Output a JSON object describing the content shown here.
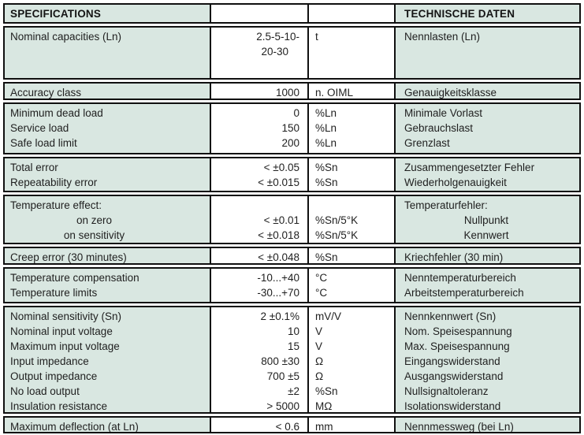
{
  "colors": {
    "cell_teal": "#d9e7e1",
    "cell_white": "#ffffff",
    "border_black": "#101010",
    "text": "#1f1f1f"
  },
  "table": {
    "header": {
      "left": "SPECIFICATIONS",
      "right": "TECHNISCHE DATEN"
    },
    "groups": [
      {
        "rows": [
          {
            "name": "Nominal capacities (Ln)",
            "value": "2.5-5-10-",
            "unit": "t",
            "german": "Nennlasten (Ln)"
          },
          {
            "name": "",
            "value": "20-30",
            "unit": "",
            "german": ""
          }
        ]
      },
      {
        "rows": [
          {
            "name": "Accuracy class",
            "value": "1000",
            "unit": "n. OIML",
            "german": "Genauigkeitsklasse"
          }
        ]
      },
      {
        "rows": [
          {
            "name": "Minimum dead load",
            "value": "0",
            "unit": "%Ln",
            "german": "Minimale Vorlast"
          },
          {
            "name": "Service load",
            "value": "150",
            "unit": "%Ln",
            "german": "Gebrauchslast"
          },
          {
            "name": "Safe load limit",
            "value": "200",
            "unit": "%Ln",
            "german": "Grenzlast"
          }
        ]
      },
      {
        "rows": [
          {
            "name": "Total error",
            "value": "< ±0.05",
            "unit": "%Sn",
            "german": "Zusammengesetzter Fehler"
          },
          {
            "name": "Repeatability error",
            "value": "< ±0.015",
            "unit": "%Sn",
            "german": "Wiederholgenauigkeit"
          }
        ]
      },
      {
        "rows": [
          {
            "name": "Temperature effect:",
            "value": "",
            "unit": "",
            "german": "Temperaturfehler:"
          },
          {
            "name": "on zero",
            "value": "< ±0.01",
            "unit": "%Sn/5°K",
            "german": "Nullpunkt",
            "sub": true
          },
          {
            "name": "on sensitivity",
            "value": "< ±0.018",
            "unit": "%Sn/5°K",
            "german": "Kennwert",
            "sub": true
          }
        ]
      },
      {
        "rows": [
          {
            "name": "Creep error (30 minutes)",
            "value": "< ±0.048",
            "unit": "%Sn",
            "german": "Kriechfehler (30 min)"
          }
        ]
      },
      {
        "rows": [
          {
            "name": "Temperature compensation",
            "value": "-10...+40",
            "unit": "°C",
            "german": "Nenntemperaturbereich"
          },
          {
            "name": "Temperature limits",
            "value": "-30...+70",
            "unit": "°C",
            "german": "Arbeitstemperaturbereich"
          }
        ]
      },
      {
        "rows": [
          {
            "name": "Nominal sensitivity (Sn)",
            "value": "2 ±0.1%",
            "unit": "mV/V",
            "german": "Nennkennwert (Sn)"
          },
          {
            "name": "Nominal input voltage",
            "value": "10",
            "unit": "V",
            "german": "Nom. Speisespannung"
          },
          {
            "name": "Maximum input voltage",
            "value": "15",
            "unit": "V",
            "german": "Max. Speisespannung"
          },
          {
            "name": "Input impedance",
            "value": "800 ±30",
            "unit": "Ω",
            "german": "Eingangswiderstand"
          },
          {
            "name": "Output impedance",
            "value": "700 ±5",
            "unit": "Ω",
            "german": "Ausgangswiderstand"
          },
          {
            "name": "No load output",
            "value": "±2",
            "unit": "%Sn",
            "german": "Nullsignaltoleranz"
          },
          {
            "name": "Insulation resistance",
            "value": "> 5000",
            "unit": "MΩ",
            "german": "Isolationswiderstand"
          }
        ]
      },
      {
        "rows": [
          {
            "name": "Maximum deflection (at Ln)",
            "value": "< 0.6",
            "unit": "mm",
            "german": "Nennmessweg (bei Ln)"
          }
        ]
      }
    ]
  }
}
